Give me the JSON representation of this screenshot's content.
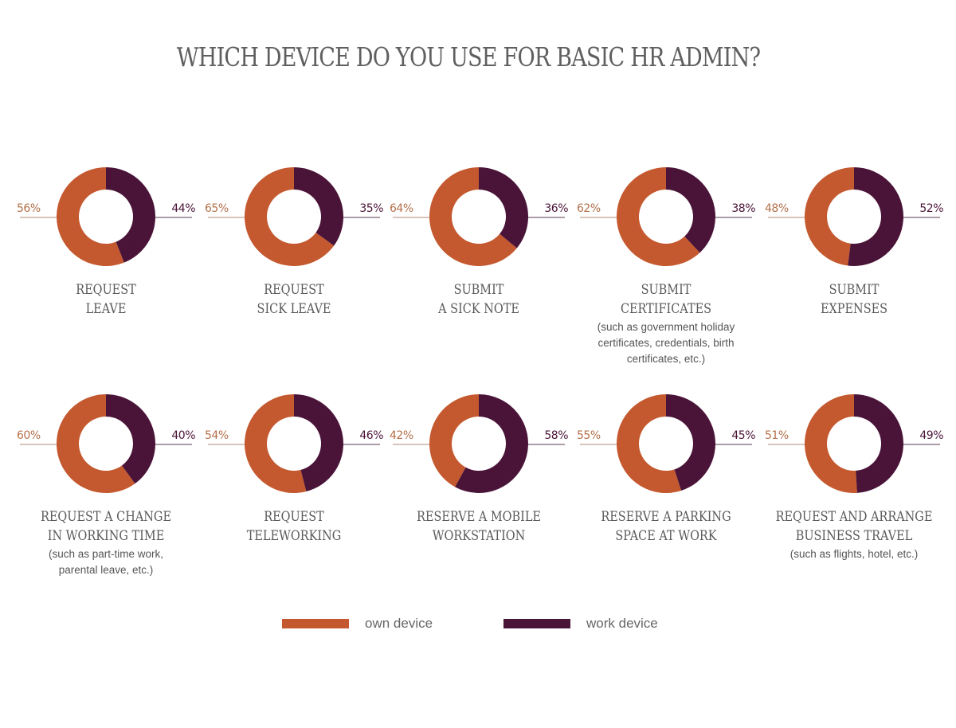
{
  "title": "WHICH DEVICE DO YOU USE FOR BASIC HR ADMIN?",
  "colors": {
    "own_device": "#c4592f",
    "work_device": "#4a1438",
    "text": "#5a5a5a"
  },
  "legend": [
    {
      "label": "own device",
      "color": "#c4592f"
    },
    {
      "label": "work device",
      "color": "#4a1438"
    }
  ],
  "charts": [
    {
      "own": 56,
      "work": 44,
      "own_label": "56%",
      "work_label": "44%",
      "title_lines": [
        "REQUEST",
        "LEAVE"
      ],
      "subtitle": ""
    },
    {
      "own": 65,
      "work": 35,
      "own_label": "65%",
      "work_label": "35%",
      "title_lines": [
        "REQUEST",
        "SICK LEAVE"
      ],
      "subtitle": ""
    },
    {
      "own": 64,
      "work": 36,
      "own_label": "64%",
      "work_label": "36%",
      "title_lines": [
        "SUBMIT",
        "A SICK NOTE"
      ],
      "subtitle": ""
    },
    {
      "own": 62,
      "work": 38,
      "own_label": "62%",
      "work_label": "38%",
      "title_lines": [
        "SUBMIT",
        "CERTIFICATES"
      ],
      "subtitle": "(such as government holiday certificates, credentials, birth certificates, etc.)"
    },
    {
      "own": 48,
      "work": 52,
      "own_label": "48%",
      "work_label": "52%",
      "title_lines": [
        "SUBMIT",
        "EXPENSES"
      ],
      "subtitle": ""
    },
    {
      "own": 60,
      "work": 40,
      "own_label": "60%",
      "work_label": "40%",
      "title_lines": [
        "REQUEST A CHANGE",
        "IN WORKING TIME"
      ],
      "subtitle": "(such as part-time work, parental leave, etc.)"
    },
    {
      "own": 54,
      "work": 46,
      "own_label": "54%",
      "work_label": "46%",
      "title_lines": [
        "REQUEST",
        "TELEWORKING"
      ],
      "subtitle": ""
    },
    {
      "own": 42,
      "work": 58,
      "own_label": "42%",
      "work_label": "58%",
      "title_lines": [
        "RESERVE A MOBILE",
        "WORKSTATION"
      ],
      "subtitle": ""
    },
    {
      "own": 55,
      "work": 45,
      "own_label": "55%",
      "work_label": "45%",
      "title_lines": [
        "RESERVE A PARKING",
        "SPACE AT WORK"
      ],
      "subtitle": ""
    },
    {
      "own": 51,
      "work": 49,
      "own_label": "51%",
      "work_label": "49%",
      "title_lines": [
        "REQUEST AND ARRANGE",
        "BUSINESS TRAVEL"
      ],
      "subtitle": "(such as flights, hotel, etc.)"
    }
  ],
  "chart_data": {
    "type": "pie",
    "title": "WHICH DEVICE DO YOU USE FOR BASIC HR ADMIN?",
    "donut": true,
    "legend_position": "bottom",
    "categories": [
      "Request leave",
      "Request sick leave",
      "Submit a sick note",
      "Submit certificates (such as government holiday certificates, credentials, birth certificates, etc.)",
      "Submit expenses",
      "Request a change in working time (such as part-time work, parental leave, etc.)",
      "Request teleworking",
      "Reserve a mobile workstation",
      "Reserve a parking space at work",
      "Request and arrange business travel (such as flights, hotel, etc.)"
    ],
    "series": [
      {
        "name": "own device",
        "color": "#c4592f",
        "values": [
          56,
          65,
          64,
          62,
          48,
          60,
          54,
          42,
          55,
          51
        ]
      },
      {
        "name": "work device",
        "color": "#4a1438",
        "values": [
          44,
          35,
          36,
          38,
          52,
          40,
          46,
          58,
          45,
          49
        ]
      }
    ],
    "unit": "%"
  }
}
